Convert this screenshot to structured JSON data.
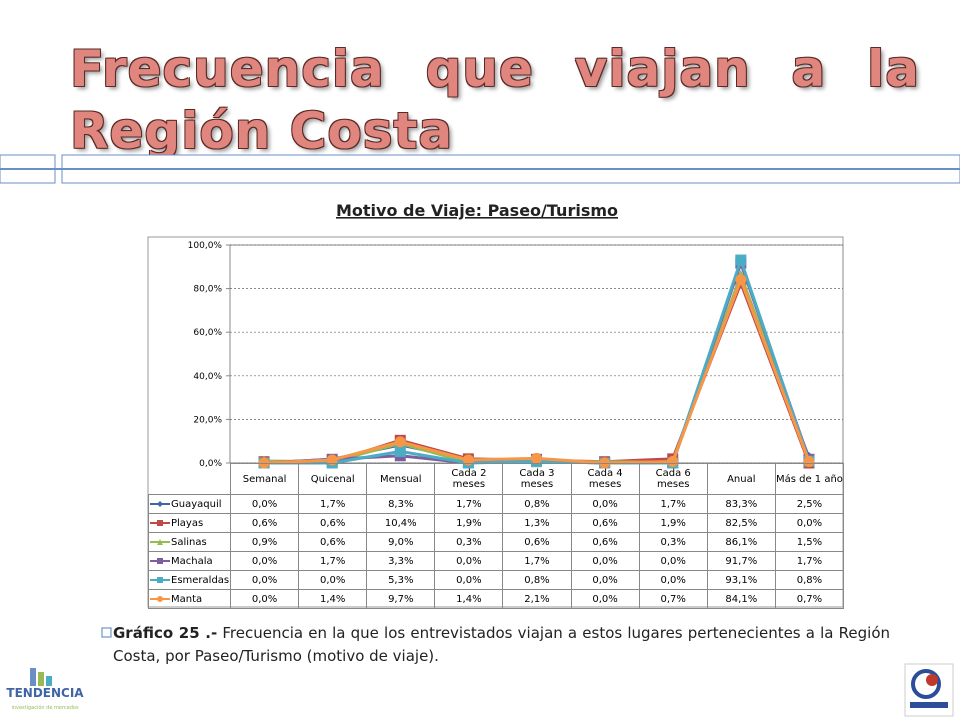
{
  "slide_title": "Frecuencia que viajan a la Región Costa",
  "chart_data": {
    "type": "line",
    "title": "Motivo de Viaje: Paseo/Turismo",
    "categories": [
      "Semanal",
      "Quicenal",
      "Mensual",
      "Cada 2 meses",
      "Cada 3 meses",
      "Cada 4 meses",
      "Cada 6 meses",
      "Anual",
      "Más de 1 año"
    ],
    "ylim": [
      0,
      100
    ],
    "yticks": [
      {
        "value": 0,
        "label": "0,0%"
      },
      {
        "value": 20,
        "label": "20,0%"
      },
      {
        "value": 40,
        "label": "40,0%"
      },
      {
        "value": 60,
        "label": "60,0%"
      },
      {
        "value": 80,
        "label": "80,0%"
      },
      {
        "value": 100,
        "label": "100,0%"
      }
    ],
    "grid": true,
    "series": [
      {
        "name": "Guayaquil",
        "color": "#3f64a8",
        "marker": "diamond",
        "values": [
          0,
          1.7,
          8.3,
          1.7,
          0.8,
          0,
          1.7,
          83.3,
          2.5
        ],
        "value_labels": [
          "0,0%",
          "1,7%",
          "8,3%",
          "1,7%",
          "0,8%",
          "0,0%",
          "1,7%",
          "83,3%",
          "2,5%"
        ]
      },
      {
        "name": "Playas",
        "color": "#be4b48",
        "marker": "square",
        "values": [
          0.6,
          0.6,
          10.4,
          1.9,
          1.3,
          0.6,
          1.9,
          82.5,
          0
        ],
        "value_labels": [
          "0,6%",
          "0,6%",
          "10,4%",
          "1,9%",
          "1,3%",
          "0,6%",
          "1,9%",
          "82,5%",
          "0,0%"
        ]
      },
      {
        "name": "Salinas",
        "color": "#98b954",
        "marker": "triangle",
        "values": [
          0.9,
          0.6,
          9.0,
          0.3,
          0.6,
          0.6,
          0.3,
          86.1,
          1.5
        ],
        "value_labels": [
          "0,9%",
          "0,6%",
          "9,0%",
          "0,3%",
          "0,6%",
          "0,6%",
          "0,3%",
          "86,1%",
          "1,5%"
        ]
      },
      {
        "name": "Machala",
        "color": "#7d5fa0",
        "marker": "square",
        "values": [
          0,
          1.7,
          3.3,
          0,
          1.7,
          0,
          0,
          91.7,
          1.7
        ],
        "value_labels": [
          "0,0%",
          "1,7%",
          "3,3%",
          "0,0%",
          "1,7%",
          "0,0%",
          "0,0%",
          "91,7%",
          "1,7%"
        ]
      },
      {
        "name": "Esmeraldas",
        "color": "#4bacc6",
        "marker": "square",
        "values": [
          0,
          0,
          5.3,
          0,
          0.8,
          0,
          0,
          93.1,
          0.8
        ],
        "value_labels": [
          "0,0%",
          "0,0%",
          "5,3%",
          "0,0%",
          "0,8%",
          "0,0%",
          "0,0%",
          "93,1%",
          "0,8%"
        ]
      },
      {
        "name": "Manta",
        "color": "#f79646",
        "marker": "circle",
        "values": [
          0,
          1.4,
          9.7,
          1.4,
          2.1,
          0,
          0.7,
          84.1,
          0.7
        ],
        "value_labels": [
          "0,0%",
          "1,4%",
          "9,7%",
          "1,4%",
          "2,1%",
          "0,0%",
          "0,7%",
          "84,1%",
          "0,7%"
        ]
      }
    ]
  },
  "caption": {
    "label": "Gráfico 25 .-",
    "text": "Frecuencia en la que los entrevistados viajan a estos lugares pertenecientes a la Región Costa, por Paseo/Turismo (motivo de viaje)."
  },
  "logo": {
    "name": "TENDENCIA",
    "tagline": "investigación de mercados"
  }
}
